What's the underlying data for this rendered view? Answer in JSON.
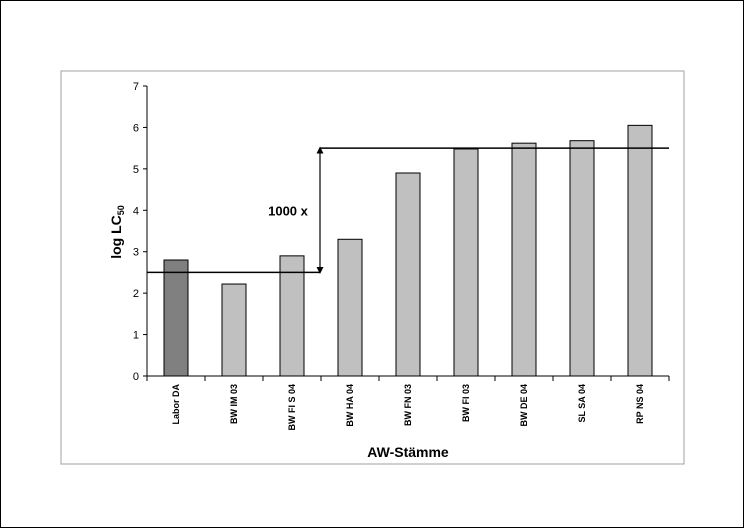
{
  "chart_data": {
    "type": "bar",
    "categories": [
      "Labor DA",
      "BW IM 03",
      "BW FI S 04",
      "BW HA 04",
      "BW FN 03",
      "BW FI 03",
      "BW DE 04",
      "SL SA 04",
      "RP NS 04"
    ],
    "values": [
      2.8,
      2.22,
      2.9,
      3.3,
      4.9,
      5.48,
      5.62,
      5.68,
      6.05
    ],
    "bar_colors": [
      "#808080",
      "#c0c0c0",
      "#c0c0c0",
      "#c0c0c0",
      "#c0c0c0",
      "#c0c0c0",
      "#c0c0c0",
      "#c0c0c0",
      "#c0c0c0"
    ],
    "xlabel": "AW-Stämme",
    "ylabel_main": "log LC",
    "ylabel_sub": "50",
    "ylim": [
      0,
      7
    ],
    "yticks": [
      0,
      1,
      2,
      3,
      4,
      5,
      6,
      7
    ],
    "grid": false,
    "reference_lines": [
      2.5,
      5.5
    ],
    "annotation": {
      "text": "1000 x",
      "from": 2.5,
      "to": 5.5
    }
  }
}
